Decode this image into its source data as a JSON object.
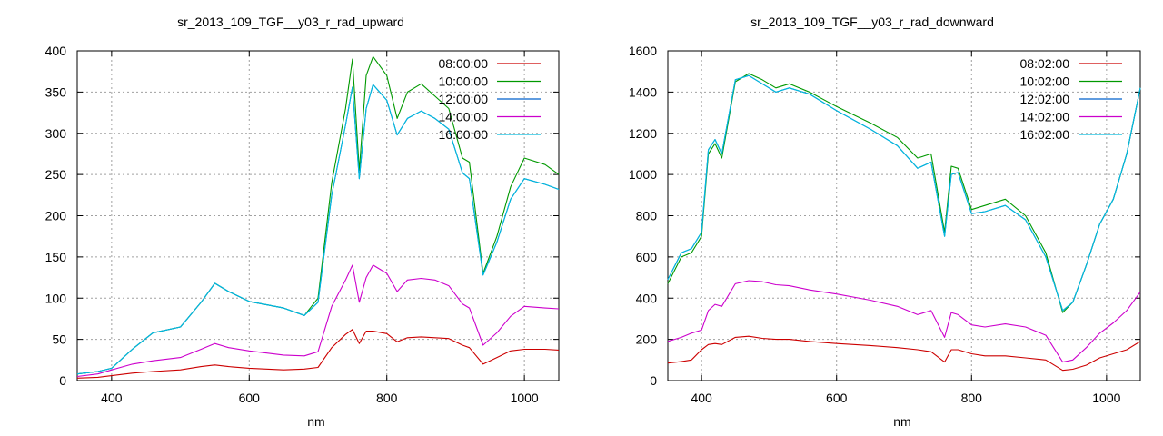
{
  "chart_data": [
    {
      "type": "line",
      "title": "sr_2013_109_TGF__y03_r_rad_upward",
      "xlabel": "nm",
      "ylabel": "",
      "xlim": [
        350,
        1050
      ],
      "ylim": [
        0,
        400
      ],
      "xticks": [
        400,
        600,
        800,
        1000
      ],
      "yticks": [
        0,
        50,
        100,
        150,
        200,
        250,
        300,
        350,
        400
      ],
      "grid": true,
      "legend_position": "top-right",
      "x": [
        350,
        380,
        400,
        430,
        460,
        500,
        530,
        550,
        570,
        600,
        650,
        680,
        700,
        720,
        740,
        750,
        760,
        770,
        780,
        800,
        815,
        830,
        850,
        870,
        890,
        910,
        920,
        940,
        960,
        980,
        1000,
        1030,
        1050
      ],
      "series": [
        {
          "name": "08:00:00",
          "color": "#cc0000",
          "values": [
            3,
            4,
            6,
            9,
            11,
            13,
            17,
            19,
            17,
            15,
            13,
            14,
            16,
            40,
            56,
            62,
            45,
            60,
            60,
            57,
            47,
            52,
            53,
            52,
            51,
            43,
            40,
            20,
            28,
            36,
            38,
            38,
            37
          ]
        },
        {
          "name": "10:00:00",
          "color": "#009900",
          "values": [
            8,
            11,
            15,
            38,
            58,
            65,
            95,
            118,
            108,
            96,
            88,
            79,
            100,
            240,
            330,
            390,
            255,
            370,
            393,
            370,
            318,
            350,
            360,
            345,
            330,
            270,
            265,
            130,
            175,
            235,
            270,
            262,
            250
          ]
        },
        {
          "name": "12:00:00",
          "color": "#0060cc",
          "values": [
            8,
            11,
            15,
            38,
            58,
            65,
            95,
            118,
            108,
            96,
            88,
            79,
            95,
            225,
            310,
            356,
            245,
            330,
            359,
            340,
            298,
            318,
            327,
            318,
            305,
            252,
            245,
            128,
            168,
            220,
            245,
            238,
            232
          ]
        },
        {
          "name": "14:00:00",
          "color": "#cc00cc",
          "values": [
            5,
            8,
            13,
            20,
            24,
            28,
            38,
            45,
            40,
            36,
            31,
            30,
            35,
            90,
            122,
            140,
            95,
            125,
            140,
            130,
            108,
            122,
            124,
            122,
            115,
            93,
            88,
            43,
            58,
            78,
            90,
            88,
            87
          ]
        },
        {
          "name": "16:00:00",
          "color": "#00bbdd",
          "values": [
            8,
            11,
            15,
            38,
            58,
            65,
            95,
            118,
            108,
            96,
            88,
            79,
            95,
            225,
            310,
            356,
            245,
            330,
            359,
            340,
            298,
            318,
            327,
            318,
            305,
            252,
            245,
            128,
            168,
            220,
            245,
            238,
            232
          ]
        }
      ]
    },
    {
      "type": "line",
      "title": "sr_2013_109_TGF__y03_r_rad_downward",
      "xlabel": "nm",
      "ylabel": "",
      "xlim": [
        350,
        1050
      ],
      "ylim": [
        0,
        1600
      ],
      "xticks": [
        400,
        600,
        800,
        1000
      ],
      "yticks": [
        0,
        200,
        400,
        600,
        800,
        1000,
        1200,
        1400,
        1600
      ],
      "grid": true,
      "legend_position": "top-right",
      "x": [
        350,
        370,
        385,
        400,
        410,
        420,
        430,
        450,
        470,
        490,
        510,
        530,
        560,
        600,
        650,
        690,
        720,
        740,
        760,
        770,
        780,
        800,
        820,
        850,
        880,
        910,
        935,
        950,
        970,
        990,
        1010,
        1030,
        1050
      ],
      "series": [
        {
          "name": "08:02:00",
          "color": "#cc0000",
          "values": [
            85,
            92,
            100,
            150,
            175,
            180,
            175,
            210,
            215,
            205,
            200,
            200,
            190,
            180,
            170,
            160,
            150,
            140,
            90,
            150,
            150,
            130,
            120,
            120,
            110,
            100,
            50,
            55,
            75,
            110,
            130,
            150,
            190
          ]
        },
        {
          "name": "10:02:00",
          "color": "#009900",
          "values": [
            470,
            600,
            620,
            700,
            1100,
            1150,
            1080,
            1450,
            1490,
            1460,
            1420,
            1440,
            1400,
            1330,
            1250,
            1180,
            1080,
            1100,
            720,
            1040,
            1030,
            830,
            850,
            880,
            800,
            620,
            330,
            380,
            560,
            760,
            880,
            1100,
            1420
          ]
        },
        {
          "name": "12:02:00",
          "color": "#0060cc",
          "values": [
            490,
            620,
            640,
            720,
            1120,
            1170,
            1100,
            1460,
            1480,
            1440,
            1400,
            1420,
            1390,
            1310,
            1220,
            1140,
            1030,
            1060,
            700,
            1000,
            1010,
            810,
            820,
            850,
            780,
            600,
            340,
            380,
            560,
            760,
            880,
            1100,
            1420
          ]
        },
        {
          "name": "14:02:00",
          "color": "#cc00cc",
          "values": [
            190,
            210,
            230,
            245,
            340,
            370,
            360,
            470,
            485,
            480,
            465,
            460,
            440,
            420,
            390,
            360,
            320,
            340,
            210,
            330,
            320,
            270,
            260,
            275,
            260,
            220,
            90,
            100,
            160,
            230,
            280,
            340,
            430
          ]
        },
        {
          "name": "16:02:00",
          "color": "#00bbdd",
          "values": [
            490,
            620,
            640,
            720,
            1120,
            1170,
            1100,
            1460,
            1480,
            1440,
            1400,
            1420,
            1390,
            1310,
            1220,
            1140,
            1030,
            1060,
            700,
            1000,
            1010,
            810,
            820,
            850,
            780,
            600,
            340,
            380,
            560,
            760,
            880,
            1100,
            1420
          ]
        }
      ]
    }
  ]
}
